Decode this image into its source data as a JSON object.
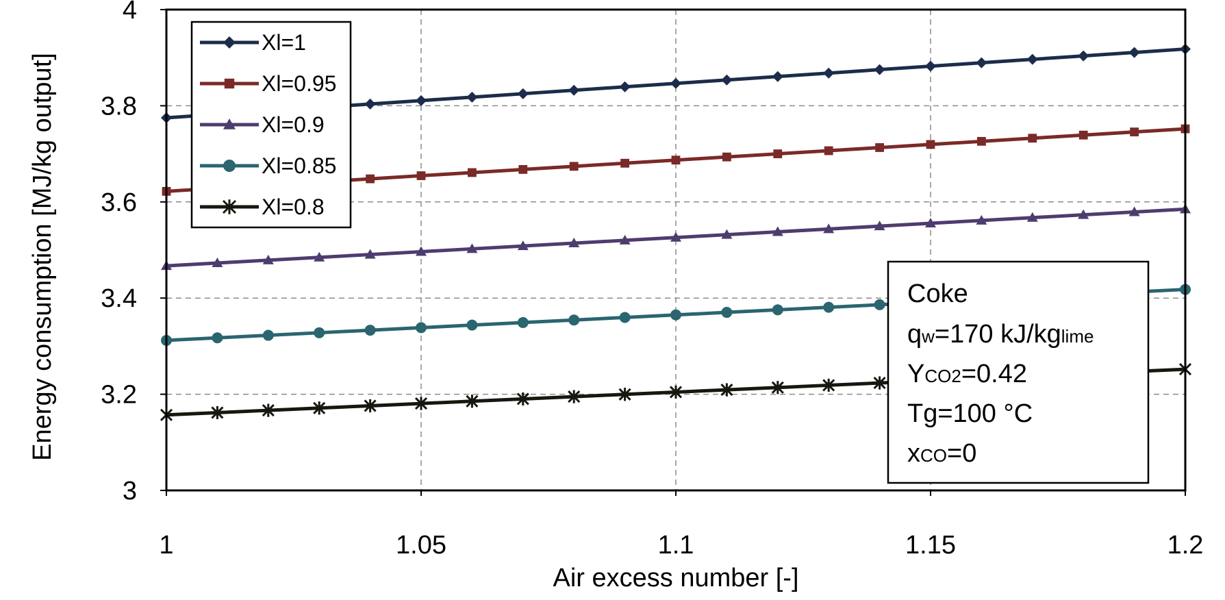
{
  "chart_data": {
    "type": "line",
    "xlabel": "Air excess number [-]",
    "ylabel": "Energy consumption [MJ/kg output]",
    "xlim": [
      1,
      1.2
    ],
    "ylim": [
      3,
      4
    ],
    "x_ticks": [
      "1",
      "1.05",
      "1.1",
      "1.15",
      "1.2"
    ],
    "y_ticks": [
      "3",
      "3.2",
      "3.4",
      "3.6",
      "3.8",
      "4"
    ],
    "grid": true,
    "legend_position": "top-left",
    "x": [
      1.0,
      1.01,
      1.02,
      1.03,
      1.04,
      1.05,
      1.06,
      1.07,
      1.08,
      1.09,
      1.1,
      1.11,
      1.12,
      1.13,
      1.14,
      1.15,
      1.16,
      1.17,
      1.18,
      1.19,
      1.2
    ],
    "series": [
      {
        "name": "Xl=1",
        "color": "#1c2c4a",
        "marker": "diamond",
        "y_start": 3.775,
        "y_end": 3.918
      },
      {
        "name": "Xl=0.95",
        "color": "#7a2a28",
        "marker": "square",
        "y_start": 3.622,
        "y_end": 3.752
      },
      {
        "name": "Xl=0.9",
        "color": "#4f3c6e",
        "marker": "triangle",
        "y_start": 3.467,
        "y_end": 3.585
      },
      {
        "name": "Xl=0.85",
        "color": "#2a6570",
        "marker": "circle",
        "y_start": 3.312,
        "y_end": 3.418
      },
      {
        "name": "Xl=0.8",
        "color": "#17170f",
        "marker": "star",
        "y_start": 3.157,
        "y_end": 3.252
      }
    ],
    "annotation": {
      "title": "Coke",
      "lines": [
        {
          "main": "q",
          "sub": "w",
          "rest": "=170 kJ/kg",
          "sub2": "lime"
        },
        {
          "main": "Y",
          "sub": "CO2",
          "rest": "=0.42",
          "sub2": ""
        },
        {
          "main": "Tg=100 °C",
          "sub": "",
          "rest": "",
          "sub2": ""
        },
        {
          "main": "x",
          "sub": "CO",
          "rest": "=0",
          "sub2": ""
        }
      ]
    }
  }
}
